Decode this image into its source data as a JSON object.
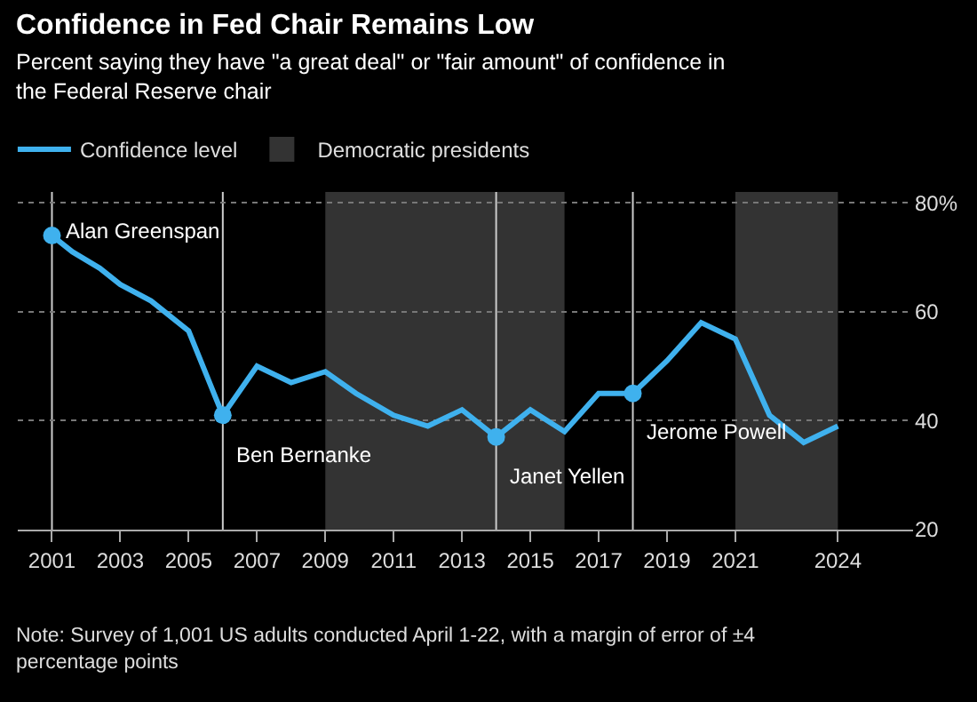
{
  "chart_data": {
    "type": "line",
    "title": "Confidence in Fed Chair Remains Low",
    "subtitle": "Percent saying they have \"a great deal\" or \"fair amount\" of confidence in the Federal Reserve chair",
    "x": [
      2001,
      2001.6,
      2002.4,
      2003,
      2003.9,
      2005,
      2006,
      2007,
      2008,
      2009,
      2009.9,
      2011,
      2012,
      2013,
      2014,
      2015,
      2016,
      2017,
      2018,
      2019,
      2020,
      2021,
      2022,
      2023,
      2024
    ],
    "series": [
      {
        "name": "Confidence level",
        "color": "#3fb1ee",
        "values": [
          74,
          71,
          68,
          65,
          62,
          56.5,
          41,
          50,
          47,
          49,
          45,
          41,
          39,
          42,
          37,
          42,
          38,
          45,
          45,
          51,
          58,
          55,
          41,
          36,
          39
        ]
      },
      {
        "type": "scatter",
        "color": "#3fb1ee",
        "marker": "circle",
        "x": [
          2001,
          2006,
          2014,
          2018
        ],
        "values": [
          74,
          41,
          37,
          45
        ]
      }
    ],
    "bands": [
      {
        "axis": "x",
        "from": 2009,
        "to": 2016,
        "label": "Democratic presidents",
        "color": "#333333"
      },
      {
        "axis": "x",
        "from": 2021,
        "to": 2024,
        "color": "#333333"
      }
    ],
    "ref_lines": [
      {
        "axis": "x",
        "value": 2001,
        "color": "#cccccc"
      },
      {
        "axis": "x",
        "value": 2006,
        "color": "#cccccc"
      },
      {
        "axis": "x",
        "value": 2014,
        "color": "#cccccc"
      },
      {
        "axis": "x",
        "value": 2018,
        "color": "#cccccc"
      }
    ],
    "annotations": [
      {
        "text": "Alan Greenspan",
        "x": 2001,
        "y": 74
      },
      {
        "text": "Ben Bernanke",
        "x": 2006,
        "y": 41
      },
      {
        "text": "Janet Yellen",
        "x": 2014,
        "y": 37
      },
      {
        "text": "Jerome Powell",
        "x": 2018,
        "y": 45
      },
      "Note: Survey of 1,001 US adults conducted April 1-22, with a margin of error of ±4 percentage points"
    ],
    "xlim": [
      2000,
      2026.2
    ],
    "xticks": [
      2001,
      2003,
      2005,
      2007,
      2009,
      2011,
      2013,
      2015,
      2017,
      2019,
      2021,
      2024
    ],
    "ylim": [
      20,
      82
    ],
    "yticks": [
      20,
      40,
      60,
      {
        "value": 80,
        "label": "80%"
      }
    ],
    "grid": "y",
    "legend": "top left",
    "line_style": "solid",
    "marker": "none"
  }
}
